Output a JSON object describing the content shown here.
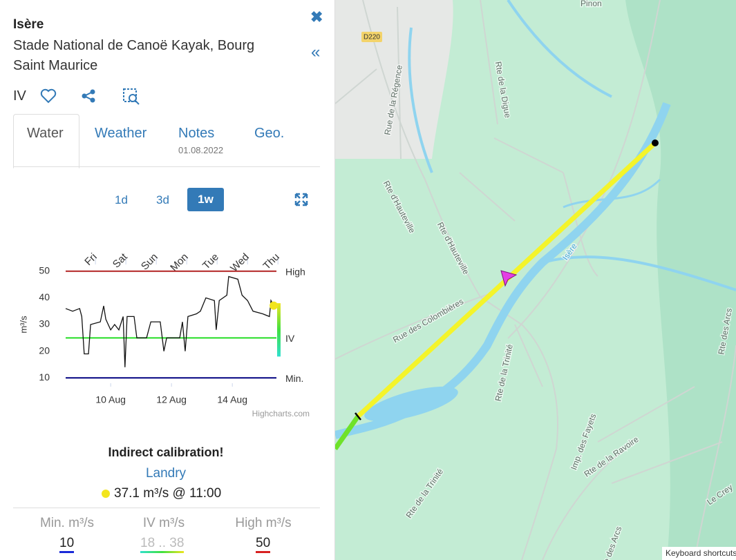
{
  "panel": {
    "title": "Isère",
    "subtitle": "Stade National de Canoë Kayak, Bourg Saint Maurice",
    "grade": "IV",
    "tabs": [
      {
        "label": "Water"
      },
      {
        "label": "Weather"
      },
      {
        "label": "Notes",
        "date": "01.08.2022"
      },
      {
        "label": "Geo."
      }
    ],
    "ranges": [
      "1d",
      "3d",
      "1w"
    ],
    "status": "Indirect calibration!",
    "gauge": "Landry",
    "reading": "37.1 m³/s @ 11:00",
    "stats": [
      {
        "label": "Min. m³/s",
        "value": 10
      },
      {
        "label": "IV m³/s",
        "value": "18 .. 38"
      },
      {
        "label": "High m³/s",
        "value": 50
      }
    ]
  },
  "chart_data": {
    "type": "line",
    "y_label": "m³/s",
    "credits": "Highcharts.com",
    "color": "#111111",
    "xlim": [
      8.52,
      15.45
    ],
    "xticks": [
      {
        "value": 10,
        "label": "10 Aug"
      },
      {
        "value": 12,
        "label": "12 Aug"
      },
      {
        "value": 14,
        "label": "14 Aug"
      }
    ],
    "x2ticks": [
      {
        "value": 9.5,
        "label": "Fri"
      },
      {
        "value": 10.5,
        "label": "Sat"
      },
      {
        "value": 11.5,
        "label": "Sun"
      },
      {
        "value": 12.5,
        "label": "Mon"
      },
      {
        "value": 13.5,
        "label": "Tue"
      },
      {
        "value": 14.5,
        "label": "Wed"
      },
      {
        "value": 15.5,
        "label": "Thu"
      }
    ],
    "ylim": [
      8,
      52
    ],
    "yticks": [
      10,
      20,
      30,
      40,
      50
    ],
    "x": [
      8.52,
      8.75,
      8.98,
      9.05,
      9.13,
      9.27,
      9.34,
      9.66,
      9.77,
      9.84,
      10.0,
      10.13,
      10.27,
      10.41,
      10.47,
      10.54,
      10.77,
      10.86,
      11.18,
      11.32,
      11.63,
      11.75,
      11.84,
      12.27,
      12.36,
      12.45,
      12.54,
      12.82,
      12.95,
      13.13,
      13.41,
      13.47,
      13.57,
      13.82,
      13.88,
      14.18,
      14.32,
      14.5,
      14.68,
      15.0,
      15.22,
      15.27,
      15.36
    ],
    "values": [
      36,
      35,
      36,
      33,
      19,
      19,
      30,
      31,
      37,
      32,
      28,
      30,
      28,
      33,
      14,
      33,
      33,
      25,
      25,
      31,
      31,
      20,
      25,
      25,
      31,
      20,
      33,
      34,
      35,
      40,
      39,
      28,
      39,
      41,
      48,
      47,
      41,
      39,
      35,
      34,
      33,
      39,
      37.1
    ],
    "plot_lines": [
      {
        "value": 50,
        "label": "High",
        "color": "#b22222"
      },
      {
        "value": 25,
        "label": "IV",
        "color": "#22dd22"
      },
      {
        "value": 10,
        "label": "Min.",
        "color": "#000080"
      }
    ],
    "band": {
      "from": 18,
      "to": 38
    },
    "marker_color": "#f2e51e"
  },
  "map": {
    "labels": [
      "Pinon",
      "D220",
      "Rue de la Régence",
      "Rte de la Digue",
      "Rte d'Hauteville",
      "Rte d'Hauteville",
      "Isère",
      "Rue des Colombières",
      "Rte de la Trinité",
      "Rte de la Trinité",
      "Imp. des Fayets",
      "Rte de la Ravoire",
      "Rte des Arcs",
      "Le Crey",
      "Rte des Arcs"
    ],
    "attribution": "Keyboard shortcuts"
  }
}
